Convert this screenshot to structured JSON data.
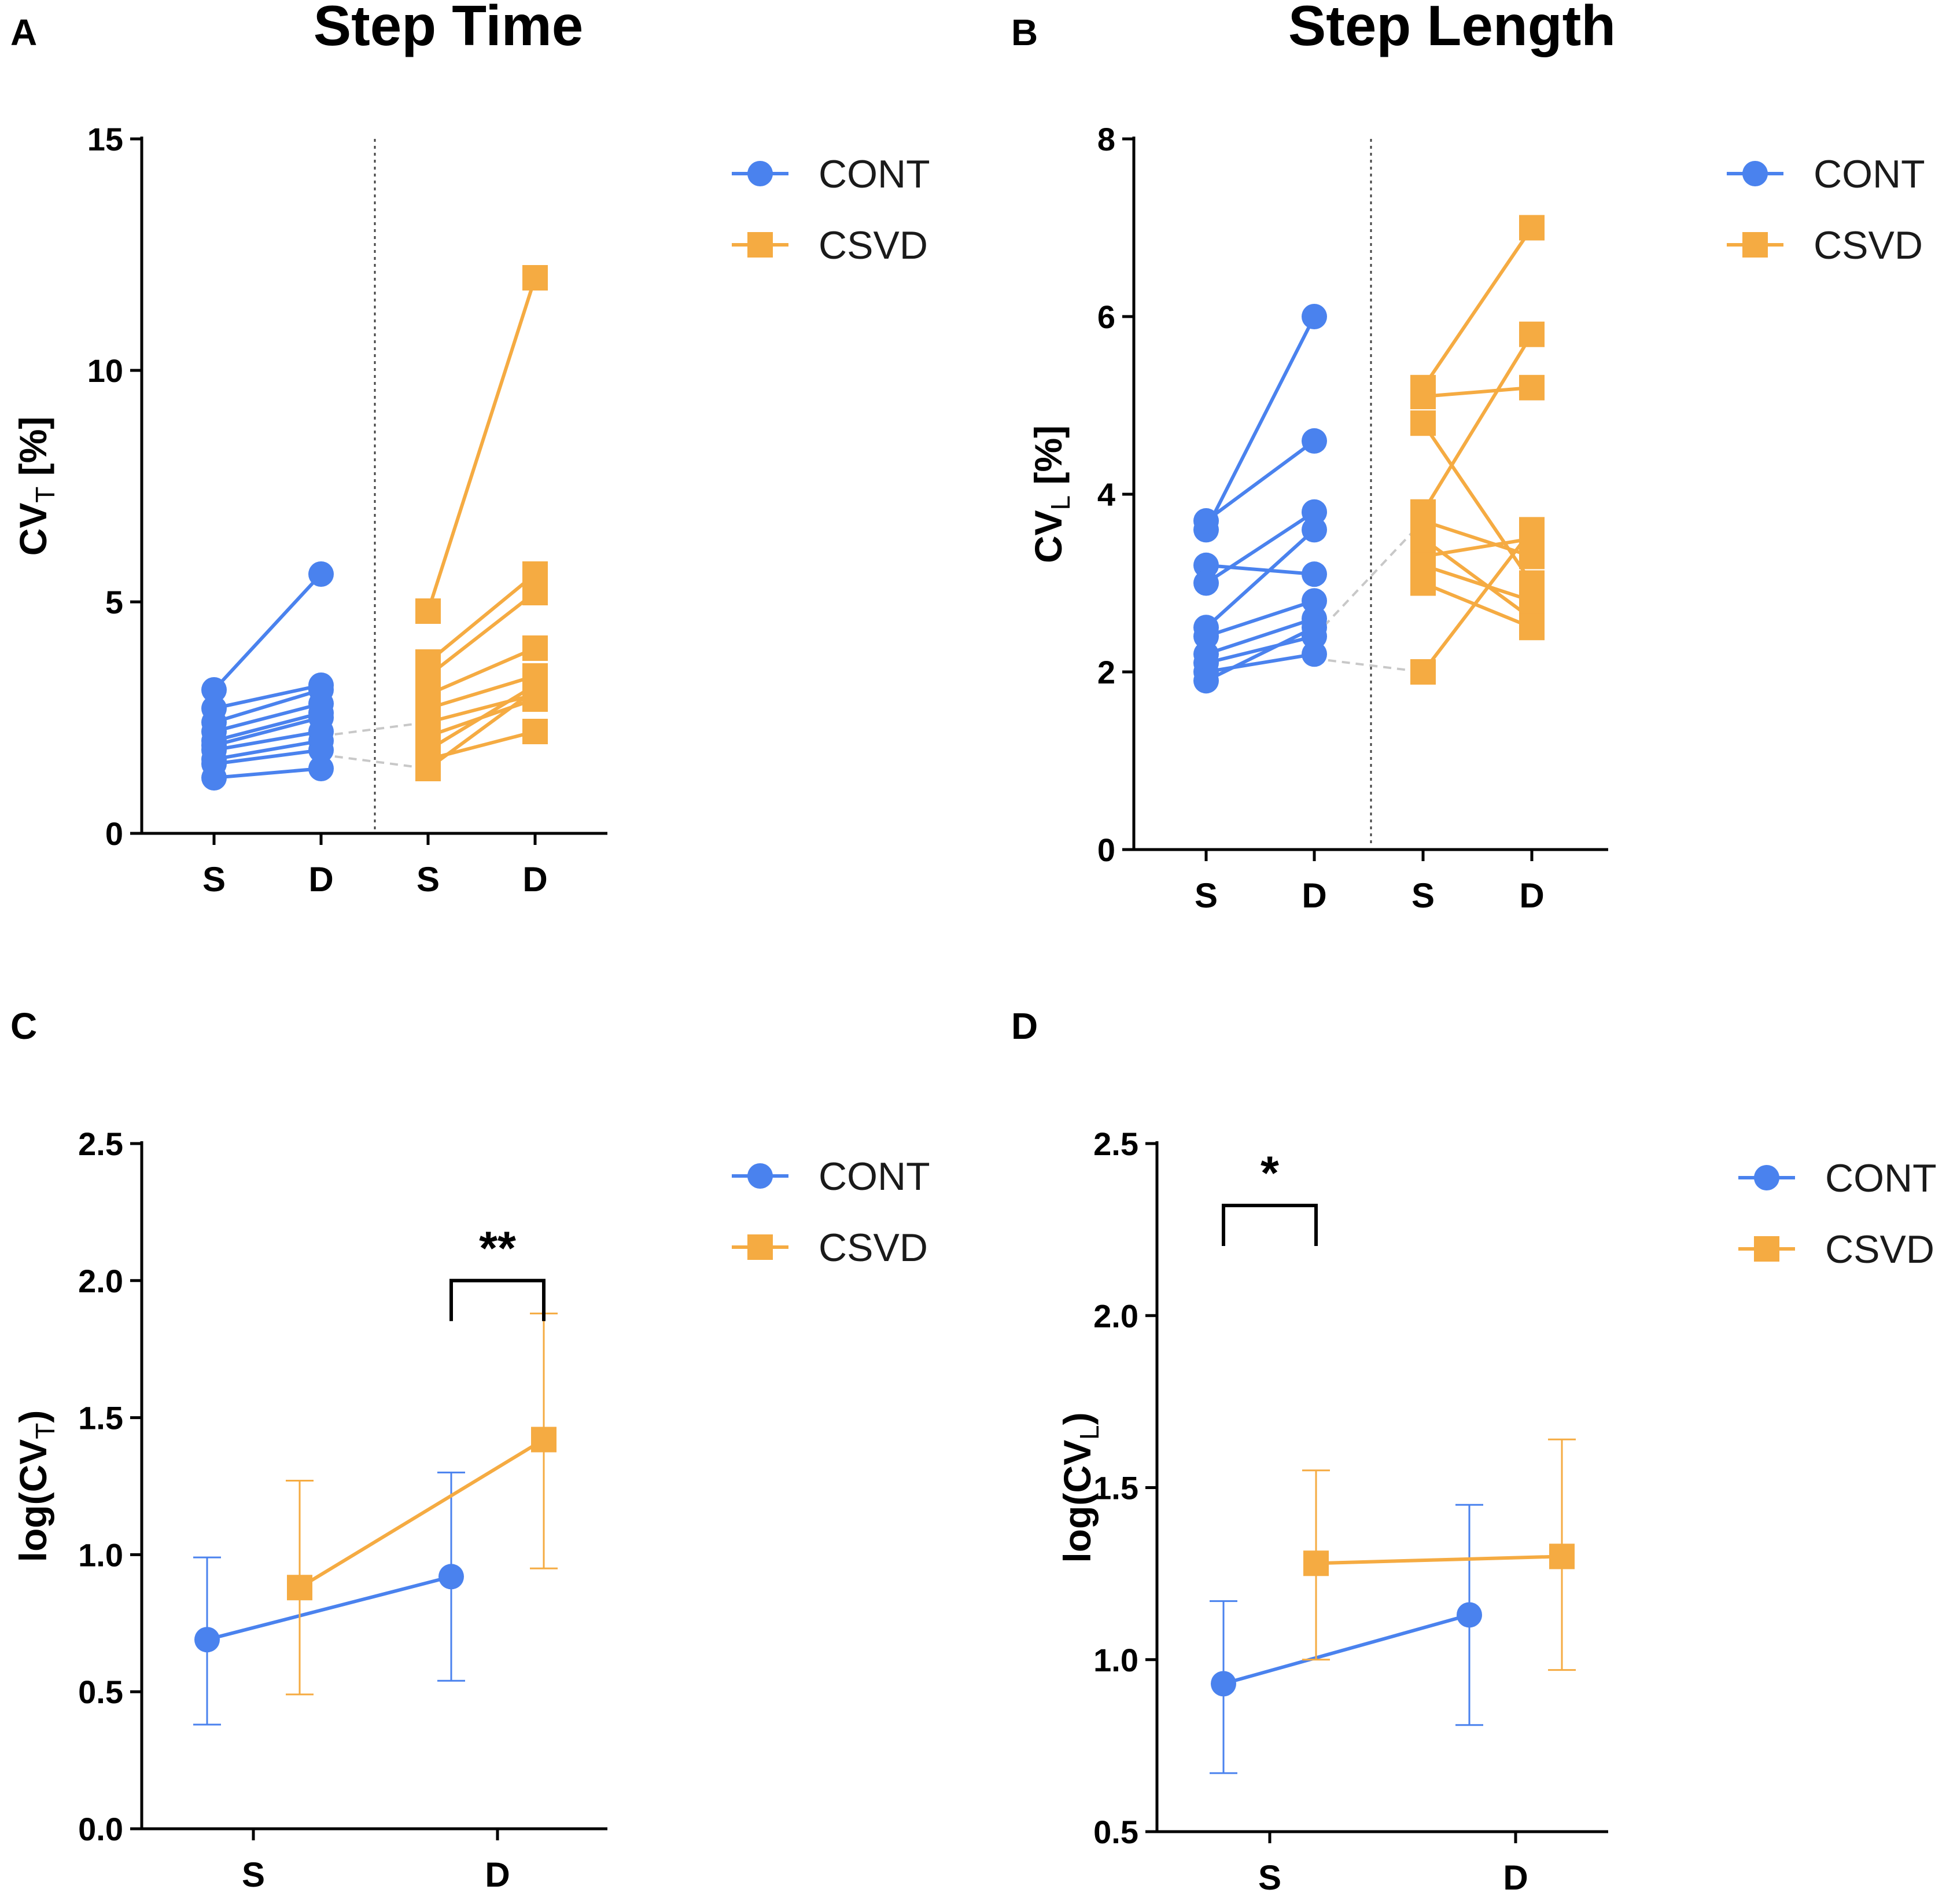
{
  "colors": {
    "cont": "#4a82ee",
    "csvd": "#f5ab42",
    "axis": "#000000",
    "connector": "#c8c8c8"
  },
  "chart_data": [
    {
      "panel": "A",
      "title": "Step Time",
      "type": "line",
      "style": "paired",
      "ylabel": {
        "base": "CV",
        "sub": "T",
        "suffix": " [%]"
      },
      "ylim": [
        0,
        15
      ],
      "yticks": [
        0,
        5,
        10,
        15
      ],
      "tick_labels": [
        "S",
        "D",
        "S",
        "D"
      ],
      "legend": [
        "CONT",
        "CSVD"
      ],
      "groups": [
        {
          "name": "CONT",
          "x": [
            0,
            1
          ],
          "pairs": [
            [
              3.1,
              5.6
            ],
            [
              2.7,
              3.2
            ],
            [
              2.4,
              3.1
            ],
            [
              2.2,
              2.8
            ],
            [
              2.0,
              2.6
            ],
            [
              1.9,
              2.5
            ],
            [
              1.8,
              2.2
            ],
            [
              1.6,
              2.0
            ],
            [
              1.5,
              1.8
            ],
            [
              1.2,
              1.4
            ]
          ]
        },
        {
          "name": "CSVD",
          "x": [
            2,
            3
          ],
          "pairs": [
            [
              4.8,
              12.0
            ],
            [
              3.7,
              5.6
            ],
            [
              3.4,
              5.2
            ],
            [
              3.0,
              4.0
            ],
            [
              2.7,
              3.4
            ],
            [
              2.4,
              3.0
            ],
            [
              2.1,
              2.9
            ],
            [
              1.8,
              3.2
            ],
            [
              1.6,
              2.2
            ],
            [
              1.4,
              3.1
            ]
          ]
        }
      ],
      "connectors": [
        [
          [
            1,
            2.1
          ],
          [
            2,
            2.4
          ]
        ],
        [
          [
            1,
            1.7
          ],
          [
            2,
            1.4
          ]
        ]
      ]
    },
    {
      "panel": "B",
      "title": "Step Length",
      "type": "line",
      "style": "paired",
      "ylabel": {
        "base": "CV",
        "sub": "L",
        "suffix": " [%]"
      },
      "ylim": [
        0,
        8
      ],
      "yticks": [
        0,
        2,
        4,
        6,
        8
      ],
      "tick_labels": [
        "S",
        "D",
        "S",
        "D"
      ],
      "legend": [
        "CONT",
        "CSVD"
      ],
      "groups": [
        {
          "name": "CONT",
          "x": [
            0,
            1
          ],
          "pairs": [
            [
              3.6,
              6.0
            ],
            [
              3.7,
              4.6
            ],
            [
              3.2,
              3.1
            ],
            [
              3.0,
              3.8
            ],
            [
              2.5,
              3.6
            ],
            [
              2.4,
              2.8
            ],
            [
              2.2,
              2.6
            ],
            [
              2.1,
              2.4
            ],
            [
              2.0,
              2.2
            ],
            [
              1.9,
              2.5
            ]
          ]
        },
        {
          "name": "CSVD",
          "x": [
            2,
            3
          ],
          "pairs": [
            [
              5.2,
              7.0
            ],
            [
              5.1,
              5.2
            ],
            [
              4.8,
              3.0
            ],
            [
              3.8,
              5.8
            ],
            [
              3.7,
              3.3
            ],
            [
              3.5,
              2.6
            ],
            [
              3.3,
              3.5
            ],
            [
              3.2,
              2.8
            ],
            [
              3.0,
              2.5
            ],
            [
              2.0,
              3.6
            ]
          ]
        }
      ],
      "connectors": [
        [
          [
            1,
            2.4
          ],
          [
            2,
            3.7
          ]
        ],
        [
          [
            1,
            2.15
          ],
          [
            2,
            2.0
          ]
        ]
      ]
    },
    {
      "panel": "C",
      "type": "line",
      "style": "mean-error",
      "ylabel": {
        "base": "log(CV",
        "sub": "T",
        "suffix": ")"
      },
      "ylim": [
        0,
        2.5
      ],
      "yticks": [
        0.0,
        0.5,
        1.0,
        1.5,
        2.0,
        2.5
      ],
      "tick_format": "0.0",
      "categories": [
        "S",
        "D"
      ],
      "legend": [
        "CONT",
        "CSVD"
      ],
      "series": [
        {
          "name": "CONT",
          "values": [
            0.69,
            0.92
          ],
          "err_low": [
            0.38,
            0.54
          ],
          "err_high": [
            0.99,
            1.3
          ]
        },
        {
          "name": "CSVD",
          "values": [
            0.88,
            1.42
          ],
          "err_low": [
            0.49,
            0.95
          ],
          "err_high": [
            1.27,
            1.88
          ]
        }
      ],
      "significance": {
        "label": "**",
        "category": 1,
        "y": 2.0
      }
    },
    {
      "panel": "D",
      "type": "line",
      "style": "mean-error",
      "ylabel": {
        "base": "log(CV",
        "sub": "L",
        "suffix": ")"
      },
      "ylim": [
        0.5,
        2.5
      ],
      "yticks": [
        0.5,
        1.0,
        1.5,
        2.0,
        2.5
      ],
      "tick_format": "0.0",
      "categories": [
        "S",
        "D"
      ],
      "legend": [
        "CONT",
        "CSVD"
      ],
      "series": [
        {
          "name": "CONT",
          "values": [
            0.93,
            1.13
          ],
          "err_low": [
            0.67,
            0.81
          ],
          "err_high": [
            1.17,
            1.45
          ]
        },
        {
          "name": "CSVD",
          "values": [
            1.28,
            1.3
          ],
          "err_low": [
            1.0,
            0.97
          ],
          "err_high": [
            1.55,
            1.64
          ]
        }
      ],
      "significance": {
        "label": "*",
        "category": 0,
        "y": 2.32
      }
    }
  ]
}
